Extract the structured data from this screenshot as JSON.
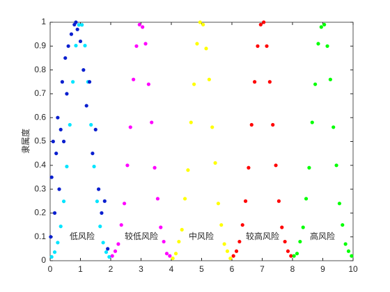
{
  "chart_data": {
    "type": "scatter",
    "ylabel": "隶属度",
    "xlim": [
      0,
      10
    ],
    "xticks": [
      0,
      1,
      2,
      3,
      4,
      5,
      6,
      7,
      8,
      9,
      10
    ],
    "ylim": [
      0,
      1
    ],
    "yticks": [
      0,
      0.1,
      0.2,
      0.3,
      0.4,
      0.5,
      0.6,
      0.7,
      0.8,
      0.9,
      1
    ],
    "annotations": [
      "低风险",
      "较低风险",
      "中风险",
      "较高风险",
      "高风险"
    ],
    "series": [
      {
        "color": "#00e5ff",
        "x": [
          0.05,
          0.15,
          0.25,
          0.35,
          0.45,
          0.55,
          0.65,
          0.75,
          0.85,
          0.95,
          1.05,
          1.15,
          1.25,
          1.35,
          1.45,
          1.55,
          1.65,
          1.75,
          1.85,
          1.95
        ],
        "y": [
          0.016,
          0.036,
          0.076,
          0.144,
          0.249,
          0.395,
          0.57,
          0.75,
          0.902,
          0.989,
          0.989,
          0.902,
          0.75,
          0.57,
          0.395,
          0.249,
          0.144,
          0.076,
          0.036,
          0.016
        ]
      },
      {
        "color": "#ff00ff",
        "x": [
          2.05,
          2.15,
          2.25,
          2.35,
          2.45,
          2.55,
          2.65,
          2.75,
          2.85,
          2.95,
          3.05,
          3.15,
          3.25,
          3.35,
          3.45,
          3.55,
          3.65,
          3.75,
          3.85,
          3.95
        ],
        "y": [
          0.02,
          0.04,
          0.07,
          0.15,
          0.24,
          0.4,
          0.56,
          0.76,
          0.9,
          0.99,
          0.98,
          0.91,
          0.74,
          0.58,
          0.39,
          0.26,
          0.14,
          0.08,
          0.03,
          0.02
        ]
      },
      {
        "color": "#ffff00",
        "x": [
          4.05,
          4.15,
          4.25,
          4.35,
          4.45,
          4.55,
          4.65,
          4.75,
          4.85,
          4.95,
          5.05,
          5.15,
          5.25,
          5.35,
          5.45,
          5.55,
          5.65,
          5.75,
          5.85,
          5.95
        ],
        "y": [
          0.01,
          0.03,
          0.08,
          0.13,
          0.26,
          0.38,
          0.58,
          0.74,
          0.91,
          1,
          0.99,
          0.89,
          0.76,
          0.56,
          0.41,
          0.24,
          0.15,
          0.07,
          0.04,
          0.01
        ]
      },
      {
        "color": "#ff0000",
        "x": [
          6.05,
          6.15,
          6.25,
          6.35,
          6.45,
          6.55,
          6.65,
          6.75,
          6.85,
          6.95,
          7.05,
          7.15,
          7.25,
          7.35,
          7.45,
          7.55,
          7.65,
          7.75,
          7.85,
          7.95
        ],
        "y": [
          0.02,
          0.04,
          0.08,
          0.15,
          0.25,
          0.39,
          0.57,
          0.75,
          0.9,
          0.99,
          1,
          0.9,
          0.75,
          0.57,
          0.4,
          0.25,
          0.14,
          0.08,
          0.04,
          0.02
        ]
      },
      {
        "color": "#00ff00",
        "x": [
          8.05,
          8.15,
          8.25,
          8.35,
          8.45,
          8.55,
          8.65,
          8.75,
          8.85,
          8.95,
          9.05,
          9.15,
          9.25,
          9.35,
          9.45,
          9.55,
          9.65,
          9.75,
          9.85,
          9.95
        ],
        "y": [
          0.02,
          0.03,
          0.08,
          0.14,
          0.26,
          0.39,
          0.58,
          0.74,
          0.91,
          0.98,
          0.99,
          0.9,
          0.76,
          0.56,
          0.4,
          0.24,
          0.15,
          0.07,
          0.04,
          0.02
        ]
      },
      {
        "color": "#0a1fcf",
        "x": [
          0.02,
          0.05,
          0.1,
          0.15,
          0.2,
          0.25,
          0.3,
          0.35,
          0.4,
          0.45,
          0.5,
          0.55,
          0.6,
          0.7,
          0.8,
          0.85,
          0.9,
          1.0,
          1.1,
          1.2,
          1.3,
          1.4,
          1.5,
          1.6,
          1.7,
          1.8,
          1.9
        ],
        "y": [
          0.1,
          0.35,
          0.5,
          0.2,
          0.45,
          0.6,
          0.3,
          0.55,
          0.75,
          0.5,
          0.85,
          0.7,
          0.9,
          0.95,
          0.99,
          1,
          0.97,
          0.92,
          0.8,
          0.65,
          0.75,
          0.45,
          0.55,
          0.3,
          0.2,
          0.25,
          0.05
        ]
      }
    ]
  }
}
